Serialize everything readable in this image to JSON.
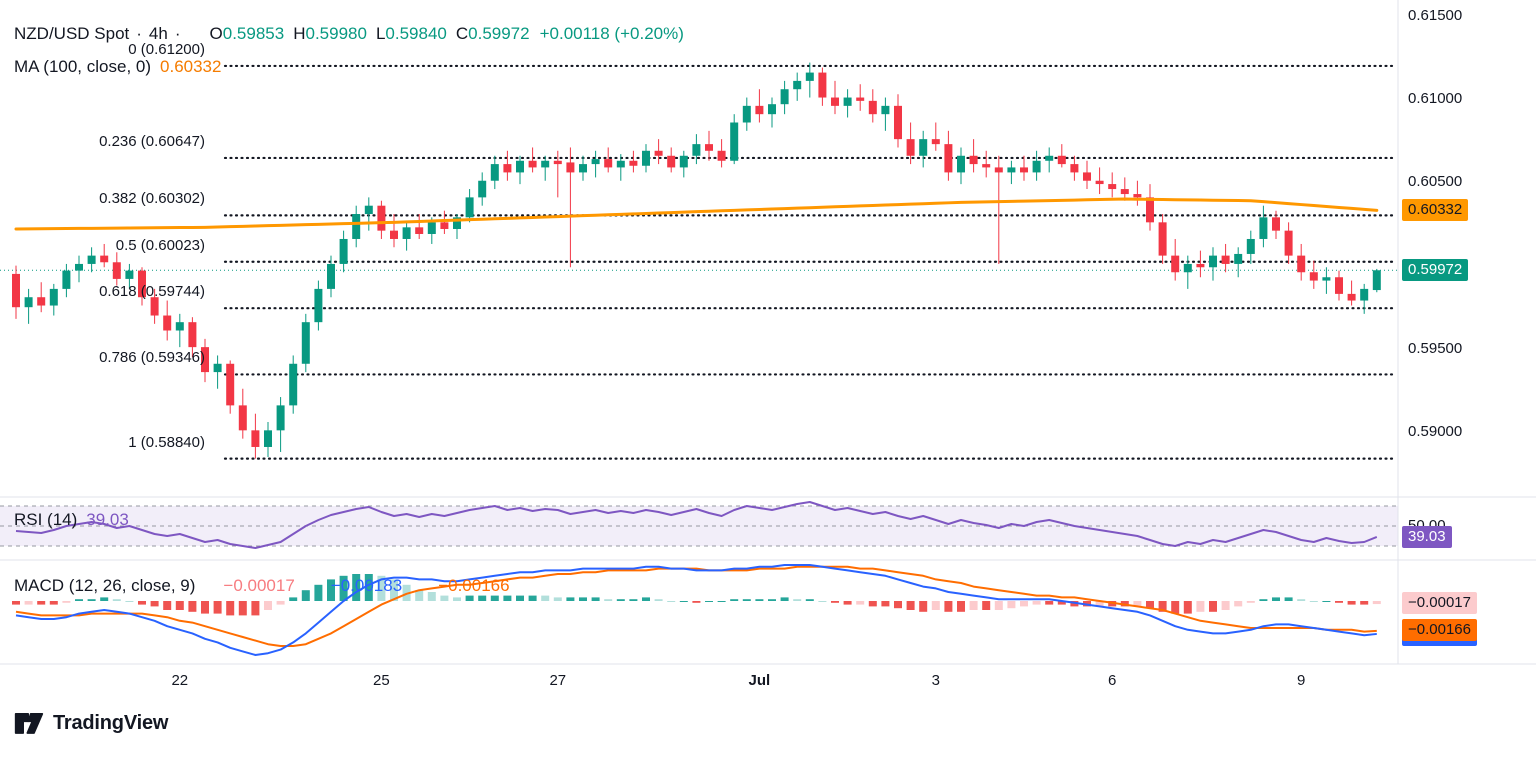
{
  "header": {
    "symbol": "NZD/USD Spot",
    "dot": "·",
    "interval": "4h",
    "o_label": "O",
    "o": "0.59853",
    "h_label": "H",
    "h": "0.59980",
    "l_label": "L",
    "l": "0.59840",
    "c_label": "C",
    "c": "0.59972",
    "change": "+0.00118 (+0.20%)",
    "ma_label": "MA (100, close, 0)",
    "ma_value": "0.60332"
  },
  "rsi": {
    "label": "RSI (14)",
    "value": "39.03",
    "badge": "39.03",
    "mid_label": "50.00"
  },
  "macd": {
    "label": "MACD (12, 26, close, 9)",
    "hist": "−0.00017",
    "macd": "−0.00183",
    "signal": "−0.00166",
    "hist_badge": "−0.00017",
    "macd_badge": "−0.00183",
    "signal_badge": "−0.00166"
  },
  "price_axis": {
    "ma_badge": "0.60332",
    "close_badge": "0.59972",
    "labels": [
      {
        "text": "0.61500",
        "price": 0.615
      },
      {
        "text": "0.61000",
        "price": 0.61
      },
      {
        "text": "0.60500",
        "price": 0.605
      },
      {
        "text": "0.59500",
        "price": 0.595
      },
      {
        "text": "0.59000",
        "price": 0.59
      }
    ]
  },
  "footer": {
    "brand": "TradingView"
  },
  "colors": {
    "up": "#089981",
    "down": "#f23645",
    "ma": "#ff9800",
    "rsi": "#7e57c2",
    "rsi_band": "rgba(126,87,194,0.10)",
    "macd": "#2962ff",
    "signal": "#ff6d00",
    "hist_up": "#26a69a",
    "hist_up_weak": "#b2dfdb",
    "hist_down": "#ef5350",
    "hist_down_weak": "#fccbcd",
    "grid": "#e0e3eb",
    "fib": "#131722",
    "level_dash": "#9598a1"
  },
  "chart_data": {
    "type": "candlestick",
    "symbol": "NZD/USD Spot",
    "interval": "4h",
    "title": "NZD/USD Spot · 4h",
    "ohlc_current": {
      "open": 0.59853,
      "high": 0.5998,
      "low": 0.5984,
      "close": 0.59972,
      "change": 0.00118,
      "change_pct": 0.2
    },
    "price_range": [
      0.5879,
      0.6155
    ],
    "fib_levels": [
      {
        "level": "0",
        "label": "0 (0.61200)",
        "price": 0.612
      },
      {
        "level": "0.236",
        "label": "0.236 (0.60647)",
        "price": 0.60647
      },
      {
        "level": "0.382",
        "label": "0.382 (0.60302)",
        "price": 0.60302
      },
      {
        "level": "0.5",
        "label": "0.5 (0.60023)",
        "price": 0.60023
      },
      {
        "level": "0.618",
        "label": "0.618 (0.59744)",
        "price": 0.59744
      },
      {
        "level": "0.786",
        "label": "0.786 (0.59346)",
        "price": 0.59346
      },
      {
        "level": "1",
        "label": "1 (0.58840)",
        "price": 0.5884
      }
    ],
    "x_labels": [
      {
        "label": "22",
        "index": 13
      },
      {
        "label": "25",
        "index": 29
      },
      {
        "label": "27",
        "index": 43
      },
      {
        "label": "Jul",
        "index": 59,
        "bold": true
      },
      {
        "label": "3",
        "index": 73
      },
      {
        "label": "6",
        "index": 87
      },
      {
        "label": "9",
        "index": 102
      }
    ],
    "candles": [
      [
        0.5995,
        0.6,
        0.5968,
        0.5975
      ],
      [
        0.5975,
        0.5986,
        0.5965,
        0.5981
      ],
      [
        0.5981,
        0.599,
        0.5972,
        0.5976
      ],
      [
        0.5976,
        0.5989,
        0.597,
        0.5986
      ],
      [
        0.5986,
        0.6001,
        0.5981,
        0.5997
      ],
      [
        0.5997,
        0.6006,
        0.599,
        0.6001
      ],
      [
        0.6001,
        0.6011,
        0.5996,
        0.6006
      ],
      [
        0.6006,
        0.6013,
        0.5999,
        0.6002
      ],
      [
        0.6002,
        0.6008,
        0.5988,
        0.5992
      ],
      [
        0.5992,
        0.6001,
        0.5986,
        0.5997
      ],
      [
        0.5997,
        0.5999,
        0.5976,
        0.5981
      ],
      [
        0.5981,
        0.5986,
        0.5965,
        0.597
      ],
      [
        0.597,
        0.5979,
        0.5955,
        0.5961
      ],
      [
        0.5961,
        0.5971,
        0.5951,
        0.5966
      ],
      [
        0.5966,
        0.5969,
        0.5945,
        0.5951
      ],
      [
        0.5951,
        0.5956,
        0.593,
        0.5936
      ],
      [
        0.5936,
        0.5946,
        0.5926,
        0.5941
      ],
      [
        0.5941,
        0.5943,
        0.5911,
        0.5916
      ],
      [
        0.5916,
        0.5926,
        0.5896,
        0.5901
      ],
      [
        0.5901,
        0.5911,
        0.5884,
        0.5891
      ],
      [
        0.5891,
        0.5906,
        0.5885,
        0.5901
      ],
      [
        0.5901,
        0.5921,
        0.5888,
        0.5916
      ],
      [
        0.5916,
        0.5946,
        0.5911,
        0.5941
      ],
      [
        0.5941,
        0.5971,
        0.5936,
        0.5966
      ],
      [
        0.5966,
        0.5991,
        0.5961,
        0.5986
      ],
      [
        0.5986,
        0.6006,
        0.5981,
        0.6001
      ],
      [
        0.6001,
        0.6021,
        0.5996,
        0.6016
      ],
      [
        0.6016,
        0.6036,
        0.6011,
        0.6031
      ],
      [
        0.6031,
        0.6041,
        0.6021,
        0.6036
      ],
      [
        0.6036,
        0.6039,
        0.6016,
        0.6021
      ],
      [
        0.6021,
        0.6031,
        0.6011,
        0.6016
      ],
      [
        0.6016,
        0.6026,
        0.6009,
        0.6023
      ],
      [
        0.6023,
        0.6031,
        0.6016,
        0.6019
      ],
      [
        0.6019,
        0.6029,
        0.6013,
        0.6026
      ],
      [
        0.6026,
        0.6033,
        0.6019,
        0.6022
      ],
      [
        0.6022,
        0.6031,
        0.6016,
        0.6029
      ],
      [
        0.6029,
        0.6046,
        0.6026,
        0.6041
      ],
      [
        0.6041,
        0.6056,
        0.6036,
        0.6051
      ],
      [
        0.6051,
        0.6066,
        0.6046,
        0.6061
      ],
      [
        0.6061,
        0.6069,
        0.6051,
        0.6056
      ],
      [
        0.6056,
        0.6066,
        0.6049,
        0.6063
      ],
      [
        0.6063,
        0.6071,
        0.6056,
        0.6059
      ],
      [
        0.6059,
        0.6066,
        0.6051,
        0.6063
      ],
      [
        0.6063,
        0.6069,
        0.6041,
        0.6061
      ],
      [
        0.6062,
        0.6071,
        0.5999,
        0.6056
      ],
      [
        0.6056,
        0.6066,
        0.6051,
        0.6061
      ],
      [
        0.6061,
        0.6069,
        0.6053,
        0.6064
      ],
      [
        0.6064,
        0.6071,
        0.6056,
        0.6059
      ],
      [
        0.6059,
        0.6067,
        0.6051,
        0.6063
      ],
      [
        0.6063,
        0.6069,
        0.6056,
        0.606
      ],
      [
        0.606,
        0.6073,
        0.6056,
        0.6069
      ],
      [
        0.6069,
        0.6076,
        0.6061,
        0.6066
      ],
      [
        0.6066,
        0.6071,
        0.6056,
        0.6059
      ],
      [
        0.6059,
        0.6069,
        0.6053,
        0.6066
      ],
      [
        0.6066,
        0.6079,
        0.6061,
        0.6073
      ],
      [
        0.6073,
        0.6081,
        0.6063,
        0.6069
      ],
      [
        0.6069,
        0.6076,
        0.6059,
        0.6063
      ],
      [
        0.6063,
        0.6091,
        0.6061,
        0.6086
      ],
      [
        0.6086,
        0.6101,
        0.6081,
        0.6096
      ],
      [
        0.6096,
        0.6106,
        0.6086,
        0.6091
      ],
      [
        0.6091,
        0.6101,
        0.6083,
        0.6097
      ],
      [
        0.6097,
        0.6111,
        0.6091,
        0.6106
      ],
      [
        0.6106,
        0.6116,
        0.6099,
        0.6111
      ],
      [
        0.6111,
        0.6122,
        0.6101,
        0.6116
      ],
      [
        0.6116,
        0.6119,
        0.6096,
        0.6101
      ],
      [
        0.6101,
        0.6111,
        0.6091,
        0.6096
      ],
      [
        0.6096,
        0.6106,
        0.6089,
        0.6101
      ],
      [
        0.6101,
        0.6109,
        0.6093,
        0.6099
      ],
      [
        0.6099,
        0.6106,
        0.6086,
        0.6091
      ],
      [
        0.6091,
        0.6101,
        0.6081,
        0.6096
      ],
      [
        0.6096,
        0.6103,
        0.6071,
        0.6076
      ],
      [
        0.6076,
        0.6086,
        0.6061,
        0.6066
      ],
      [
        0.6066,
        0.6081,
        0.6059,
        0.6076
      ],
      [
        0.6076,
        0.6086,
        0.6069,
        0.6073
      ],
      [
        0.6073,
        0.6081,
        0.6051,
        0.6056
      ],
      [
        0.6056,
        0.6071,
        0.6049,
        0.6066
      ],
      [
        0.6066,
        0.6076,
        0.6056,
        0.6061
      ],
      [
        0.6061,
        0.6069,
        0.6053,
        0.6059
      ],
      [
        0.6059,
        0.6066,
        0.6001,
        0.6056
      ],
      [
        0.6056,
        0.6063,
        0.6049,
        0.6059
      ],
      [
        0.6059,
        0.6066,
        0.6051,
        0.6056
      ],
      [
        0.6056,
        0.6069,
        0.6051,
        0.6063
      ],
      [
        0.6063,
        0.6071,
        0.6056,
        0.6066
      ],
      [
        0.6066,
        0.6073,
        0.6059,
        0.6061
      ],
      [
        0.6061,
        0.6066,
        0.6051,
        0.6056
      ],
      [
        0.6056,
        0.6063,
        0.6046,
        0.6051
      ],
      [
        0.6051,
        0.6059,
        0.6043,
        0.6049
      ],
      [
        0.6049,
        0.6056,
        0.6041,
        0.6046
      ],
      [
        0.6046,
        0.6053,
        0.6039,
        0.6043
      ],
      [
        0.6043,
        0.6051,
        0.6036,
        0.6041
      ],
      [
        0.6041,
        0.6049,
        0.6021,
        0.6026
      ],
      [
        0.6026,
        0.6031,
        0.6001,
        0.6006
      ],
      [
        0.6006,
        0.6016,
        0.5991,
        0.5996
      ],
      [
        0.5996,
        0.6006,
        0.5986,
        0.6001
      ],
      [
        0.6001,
        0.6009,
        0.5993,
        0.5999
      ],
      [
        0.5999,
        0.6011,
        0.5991,
        0.6006
      ],
      [
        0.6006,
        0.6013,
        0.5996,
        0.6001
      ],
      [
        0.6001,
        0.6011,
        0.5993,
        0.6007
      ],
      [
        0.6007,
        0.6021,
        0.6001,
        0.6016
      ],
      [
        0.6016,
        0.6036,
        0.6011,
        0.6029
      ],
      [
        0.6029,
        0.6033,
        0.6016,
        0.6021
      ],
      [
        0.6021,
        0.6026,
        0.6001,
        0.6006
      ],
      [
        0.6006,
        0.6013,
        0.5991,
        0.5996
      ],
      [
        0.5996,
        0.6003,
        0.5986,
        0.5991
      ],
      [
        0.5991,
        0.5999,
        0.5983,
        0.5993
      ],
      [
        0.5993,
        0.5997,
        0.5979,
        0.5983
      ],
      [
        0.5983,
        0.5991,
        0.5976,
        0.5979
      ],
      [
        0.5979,
        0.5989,
        0.5971,
        0.5986
      ],
      [
        0.59853,
        0.5998,
        0.5984,
        0.59972
      ]
    ],
    "ma100": {
      "period": 100,
      "value": 0.60332,
      "keypoints": [
        [
          0,
          0.6022
        ],
        [
          15,
          0.6023
        ],
        [
          30,
          0.6026
        ],
        [
          45,
          0.603
        ],
        [
          60,
          0.6034
        ],
        [
          75,
          0.6038
        ],
        [
          88,
          0.604
        ],
        [
          98,
          0.6039
        ],
        [
          108,
          0.60332
        ]
      ]
    },
    "rsi": {
      "period": 14,
      "value": 39.03,
      "bands": [
        70,
        50,
        30
      ],
      "series": [
        45,
        44,
        43,
        46,
        50,
        52,
        54,
        52,
        48,
        50,
        46,
        42,
        40,
        42,
        38,
        34,
        36,
        32,
        30,
        28,
        31,
        34,
        42,
        50,
        56,
        61,
        64,
        67,
        69,
        64,
        60,
        62,
        59,
        62,
        60,
        63,
        66,
        68,
        70,
        66,
        68,
        65,
        67,
        66,
        62,
        64,
        66,
        63,
        65,
        63,
        66,
        64,
        61,
        64,
        67,
        63,
        60,
        66,
        70,
        68,
        66,
        69,
        72,
        74,
        70,
        66,
        68,
        65,
        62,
        64,
        60,
        57,
        60,
        56,
        52,
        56,
        53,
        51,
        48,
        52,
        50,
        54,
        56,
        53,
        50,
        48,
        46,
        44,
        42,
        40,
        36,
        32,
        30,
        34,
        32,
        36,
        34,
        38,
        42,
        46,
        44,
        40,
        36,
        34,
        38,
        35,
        33,
        34,
        39.03
      ]
    },
    "macd": {
      "fast": 12,
      "slow": 26,
      "signal_period": 9,
      "hist_last": -0.00017,
      "macd_last": -0.00183,
      "signal_last": -0.00166,
      "macd_series": [
        -0.0008,
        -0.0009,
        -0.001,
        -0.001,
        -0.0009,
        -0.0007,
        -0.0006,
        -0.0005,
        -0.0006,
        -0.0007,
        -0.0009,
        -0.0011,
        -0.0014,
        -0.0016,
        -0.0018,
        -0.0021,
        -0.0023,
        -0.0026,
        -0.0028,
        -0.003,
        -0.0029,
        -0.0027,
        -0.0023,
        -0.0018,
        -0.0012,
        -0.0006,
        0.0,
        0.0005,
        0.0009,
        0.0012,
        0.0013,
        0.0013,
        0.0012,
        0.0012,
        0.0011,
        0.0011,
        0.0012,
        0.0013,
        0.0014,
        0.0015,
        0.0016,
        0.0016,
        0.0017,
        0.0017,
        0.0017,
        0.0018,
        0.0018,
        0.0018,
        0.0018,
        0.0018,
        0.0019,
        0.0019,
        0.0018,
        0.0018,
        0.0017,
        0.0017,
        0.0017,
        0.0018,
        0.0018,
        0.0019,
        0.0019,
        0.002,
        0.002,
        0.002,
        0.0019,
        0.0018,
        0.0017,
        0.0016,
        0.0015,
        0.0014,
        0.0012,
        0.001,
        0.0008,
        0.0007,
        0.0005,
        0.0004,
        0.0003,
        0.0002,
        0.0001,
        0.0001,
        0.0001,
        0.0001,
        0.0001,
        0.0,
        -0.0001,
        -0.0002,
        -0.0003,
        -0.0004,
        -0.0005,
        -0.0006,
        -0.0008,
        -0.0011,
        -0.0014,
        -0.0016,
        -0.0017,
        -0.0018,
        -0.0018,
        -0.0017,
        -0.0016,
        -0.0014,
        -0.0013,
        -0.0013,
        -0.0014,
        -0.0015,
        -0.0016,
        -0.0017,
        -0.0018,
        -0.0019,
        -0.00183
      ],
      "signal_series": [
        -0.0006,
        -0.0007,
        -0.0008,
        -0.0008,
        -0.0008,
        -0.0008,
        -0.0007,
        -0.0007,
        -0.0007,
        -0.0007,
        -0.0007,
        -0.0008,
        -0.0009,
        -0.0011,
        -0.0012,
        -0.0014,
        -0.0016,
        -0.0018,
        -0.002,
        -0.0022,
        -0.0024,
        -0.0025,
        -0.0025,
        -0.0024,
        -0.0021,
        -0.0018,
        -0.0014,
        -0.001,
        -0.0006,
        -0.0002,
        0.0001,
        0.0004,
        0.0006,
        0.0007,
        0.0008,
        0.0009,
        0.0009,
        0.001,
        0.0011,
        0.0012,
        0.0013,
        0.0013,
        0.0014,
        0.0015,
        0.0015,
        0.0016,
        0.0016,
        0.0017,
        0.0017,
        0.0017,
        0.0017,
        0.0018,
        0.0018,
        0.0018,
        0.0018,
        0.0017,
        0.0017,
        0.0017,
        0.0017,
        0.0018,
        0.0018,
        0.0018,
        0.0019,
        0.0019,
        0.0019,
        0.0019,
        0.0019,
        0.0018,
        0.0018,
        0.0017,
        0.0016,
        0.0015,
        0.0014,
        0.0012,
        0.0011,
        0.001,
        0.0008,
        0.0007,
        0.0006,
        0.0005,
        0.0004,
        0.0003,
        0.0003,
        0.0002,
        0.0002,
        0.0001,
        0.0,
        -0.0001,
        -0.0002,
        -0.0003,
        -0.0004,
        -0.0005,
        -0.0007,
        -0.0009,
        -0.0011,
        -0.0012,
        -0.0013,
        -0.0014,
        -0.0015,
        -0.0015,
        -0.0015,
        -0.0015,
        -0.0015,
        -0.0015,
        -0.0016,
        -0.0016,
        -0.0016,
        -0.0017,
        -0.00166
      ]
    }
  }
}
